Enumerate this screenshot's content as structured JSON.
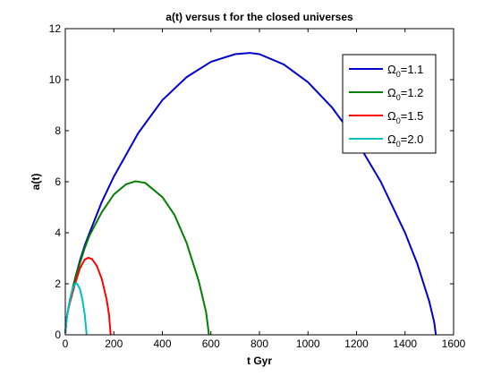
{
  "chart_data": {
    "type": "line",
    "title": "a(t) versus t for the closed universes",
    "xlabel": "t Gyr",
    "ylabel": "a(t)",
    "xlim": [
      0,
      1600
    ],
    "ylim": [
      0,
      12
    ],
    "xticks": [
      0,
      200,
      400,
      600,
      800,
      1000,
      1200,
      1400,
      1600
    ],
    "yticks": [
      0,
      2,
      4,
      6,
      8,
      10,
      12
    ],
    "grid": false,
    "legend_position": "top-right",
    "series": [
      {
        "name": "Ω₀=1.1",
        "legend_symbol": "Ω",
        "legend_subscript": "0",
        "legend_value": "=1.1",
        "color": "#0000cc",
        "omega": 1.1,
        "x": [
          0,
          5,
          10,
          20,
          40,
          60,
          80,
          100,
          150,
          200,
          300,
          400,
          500,
          600,
          700,
          760,
          800,
          900,
          1000,
          1100,
          1200,
          1300,
          1400,
          1450,
          1500,
          1520,
          1527
        ],
        "y": [
          0.05,
          0.6,
          0.9,
          1.4,
          2.2,
          2.9,
          3.5,
          4.0,
          5.2,
          6.2,
          7.9,
          9.2,
          10.1,
          10.7,
          11.0,
          11.05,
          11.0,
          10.6,
          9.9,
          8.9,
          7.6,
          6.0,
          4.0,
          2.8,
          1.3,
          0.5,
          0.0
        ]
      },
      {
        "name": "Ω₀=1.2",
        "legend_symbol": "Ω",
        "legend_subscript": "0",
        "legend_value": "=1.2",
        "color": "#007f00",
        "omega": 1.2,
        "x": [
          0,
          5,
          10,
          20,
          40,
          60,
          80,
          100,
          150,
          200,
          250,
          290,
          330,
          400,
          450,
          500,
          550,
          580,
          592
        ],
        "y": [
          0.05,
          0.6,
          0.9,
          1.4,
          2.2,
          2.8,
          3.4,
          3.9,
          4.8,
          5.5,
          5.9,
          6.02,
          5.95,
          5.4,
          4.7,
          3.6,
          2.1,
          0.9,
          0.0
        ]
      },
      {
        "name": "Ω₀=1.5",
        "legend_symbol": "Ω",
        "legend_subscript": "0",
        "legend_value": "=1.5",
        "color": "#ff0000",
        "omega": 1.5,
        "x": [
          0,
          5,
          10,
          20,
          40,
          60,
          80,
          95,
          110,
          130,
          150,
          170,
          180,
          187
        ],
        "y": [
          0.05,
          0.6,
          0.9,
          1.3,
          2.0,
          2.6,
          2.95,
          3.02,
          2.97,
          2.7,
          2.2,
          1.4,
          0.8,
          0.0
        ]
      },
      {
        "name": "Ω₀=2.0",
        "legend_symbol": "Ω",
        "legend_subscript": "0",
        "legend_value": "=2.0",
        "color": "#00bfbf",
        "omega": 2.0,
        "x": [
          0,
          5,
          10,
          20,
          30,
          40,
          45,
          50,
          60,
          70,
          80,
          88
        ],
        "y": [
          0.05,
          0.6,
          0.9,
          1.4,
          1.8,
          2.0,
          2.02,
          1.98,
          1.8,
          1.4,
          0.8,
          0.0
        ]
      }
    ]
  }
}
